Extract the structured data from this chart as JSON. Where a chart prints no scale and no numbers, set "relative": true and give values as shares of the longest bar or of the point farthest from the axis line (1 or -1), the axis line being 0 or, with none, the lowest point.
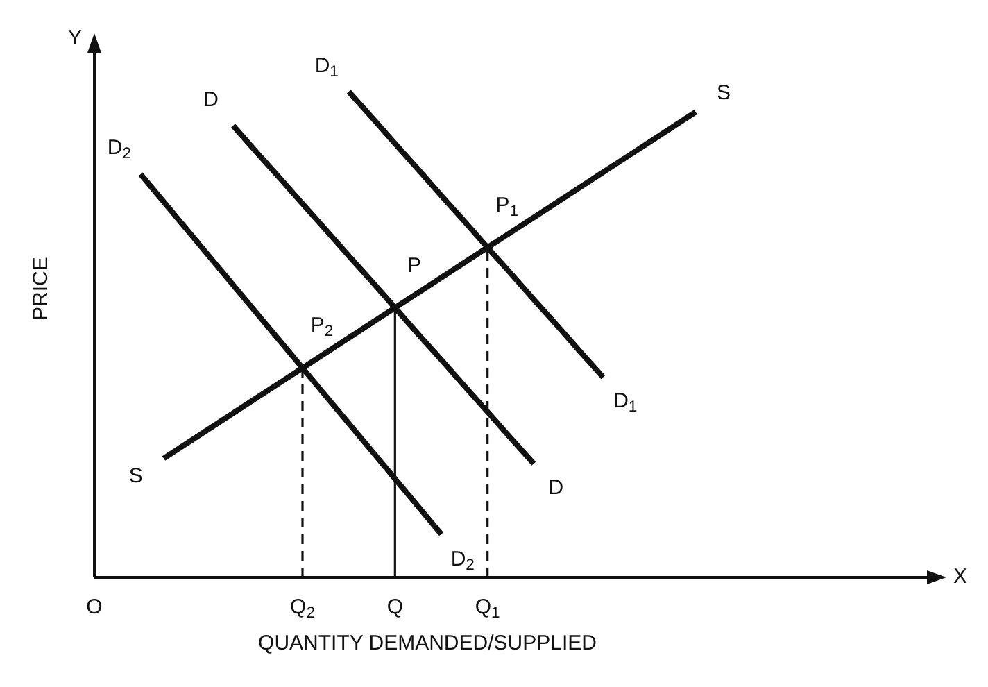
{
  "chart_data": {
    "type": "line",
    "relative": true,
    "xlabel": "QUANTITY DEMANDED/SUPPLIED",
    "ylabel": "PRICE",
    "grid": false,
    "legend": false,
    "marker": "none",
    "categories": [
      "O",
      null,
      null,
      null,
      null,
      null,
      null,
      null,
      null,
      "Q$_{2}$",
      null,
      null,
      null,
      "Q",
      null,
      null,
      null,
      "Q$_{1}$",
      null,
      null,
      null,
      null,
      null,
      null,
      null,
      null,
      null,
      null,
      null,
      null,
      null,
      null,
      null,
      null,
      null,
      null,
      null
    ],
    "series": [
      {
        "name": "S",
        "color": "#111111",
        "values": [
          null,
          null,
          null,
          0.245,
          0.276,
          0.307,
          0.338,
          0.369,
          0.4,
          0.431,
          0.462,
          0.493,
          0.524,
          0.555,
          0.586,
          0.617,
          0.648,
          0.679,
          0.71,
          0.741,
          0.772,
          0.803,
          0.834,
          0.865,
          0.896,
          0.927,
          0.958,
          null,
          null,
          null,
          null,
          null,
          null,
          null,
          null,
          null,
          null
        ]
      },
      {
        "name": "D",
        "color": "#111111",
        "values": [
          null,
          null,
          null,
          null,
          null,
          null,
          0.93,
          0.876,
          0.823,
          0.769,
          0.716,
          0.662,
          0.609,
          0.555,
          0.501,
          0.448,
          0.394,
          0.341,
          0.287,
          0.234,
          null,
          null,
          null,
          null,
          null,
          null,
          null,
          null,
          null,
          null,
          null,
          null,
          null,
          null,
          null,
          null,
          null
        ]
      },
      {
        "name": "D$_{1}$",
        "color": "#111111",
        "values": [
          null,
          null,
          null,
          null,
          null,
          null,
          null,
          null,
          null,
          null,
          null,
          1.0,
          0.947,
          0.893,
          0.84,
          0.786,
          0.733,
          0.679,
          0.626,
          0.572,
          0.519,
          0.465,
          0.412,
          null,
          null,
          null,
          null,
          null,
          null,
          null,
          null,
          null,
          null,
          null,
          null,
          null,
          null
        ]
      },
      {
        "name": "D$_{2}$",
        "color": "#111111",
        "values": [
          null,
          null,
          0.83,
          0.773,
          0.716,
          0.659,
          0.602,
          0.545,
          0.488,
          0.431,
          0.374,
          0.317,
          0.26,
          0.203,
          0.146,
          0.089,
          null,
          null,
          null,
          null,
          null,
          null,
          null,
          null,
          null,
          null,
          null,
          null,
          null,
          null,
          null,
          null,
          null,
          null,
          null,
          null,
          null
        ]
      }
    ],
    "ref_lines": [
      {
        "axis": "x",
        "value": "Q$_{2}$",
        "line_style": "dashed",
        "color": "#111111"
      },
      {
        "axis": "x",
        "value": "Q",
        "line_style": "solid",
        "color": "#111111"
      },
      {
        "axis": "x",
        "value": "Q$_{1}$",
        "line_style": "dashed",
        "color": "#111111"
      }
    ],
    "annotations": [
      {
        "text": "P$_{1}$",
        "x": "Q$_{1}$",
        "y": 0.679
      },
      {
        "text": "P",
        "x": "Q",
        "y": 0.555
      },
      {
        "text": "P$_{2}$",
        "x": "Q$_{2}$",
        "y": 0.431
      },
      "Y",
      "X"
    ]
  }
}
